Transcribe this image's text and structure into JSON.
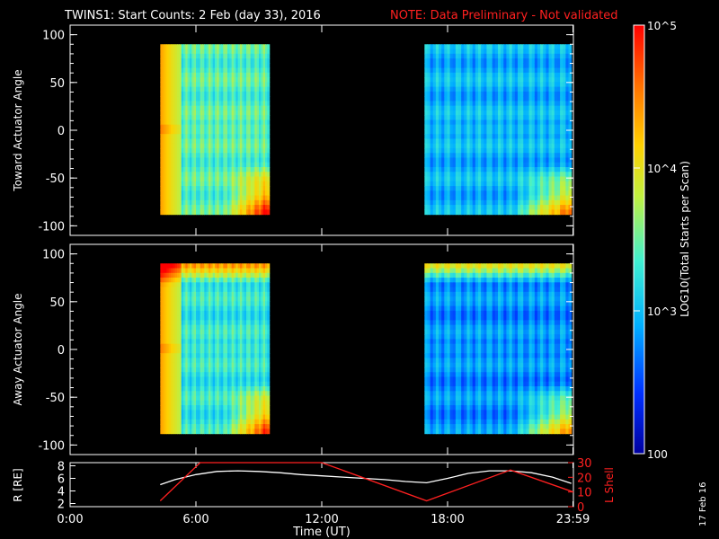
{
  "title": {
    "main": "TWINS1: Start Counts:  2 Feb (day  33), 2016",
    "note": "NOTE: Data Preliminary - Not validated"
  },
  "stamp": "17 Feb 16",
  "colorbar": {
    "label": "LOG10(Total Starts per Scan)",
    "ticks": [
      {
        "value": 100,
        "label": "100"
      },
      {
        "value": 1000,
        "label": "10^3"
      },
      {
        "value": 10000,
        "label": "10^4"
      },
      {
        "value": 100000,
        "label": "10^5"
      }
    ],
    "range": [
      100,
      100000
    ],
    "colors": [
      "#0000a0",
      "#0030ff",
      "#00b0ff",
      "#40f0d0",
      "#c0f040",
      "#ffd000",
      "#ff7000",
      "#ff0000"
    ]
  },
  "chart_data": [
    {
      "type": "heatmap",
      "panel": "top",
      "ylabel": "Toward Actuator Angle",
      "ylim": [
        -110,
        110
      ],
      "yticks": [
        -100,
        -50,
        0,
        50,
        100
      ],
      "xlim_hours": [
        0,
        24
      ],
      "blocks": [
        {
          "start_hour": 4.3,
          "end_hour": 9.5,
          "ymin": -88,
          "ymax": 90,
          "base_level": 0.45
        },
        {
          "start_hour": 16.9,
          "end_hour": 23.9,
          "ymin": -88,
          "ymax": 90,
          "base_level": 0.3
        }
      ]
    },
    {
      "type": "heatmap",
      "panel": "middle",
      "ylabel": "Away Actuator Angle",
      "ylim": [
        -110,
        110
      ],
      "yticks": [
        -100,
        -50,
        0,
        50,
        100
      ],
      "xlim_hours": [
        0,
        24
      ],
      "blocks": [
        {
          "start_hour": 4.3,
          "end_hour": 9.5,
          "ymin": -88,
          "ymax": 90,
          "base_level": 0.4
        },
        {
          "start_hour": 16.9,
          "end_hour": 23.9,
          "ymin": -88,
          "ymax": 90,
          "base_level": 0.25
        }
      ]
    },
    {
      "type": "line",
      "panel": "bottom",
      "xlabel": "Time (UT)",
      "xticks": [
        "0:00",
        "6:00",
        "12:00",
        "18:00",
        "23:59"
      ],
      "xtick_hours": [
        0,
        6,
        12,
        18,
        23.98
      ],
      "ylabel_left": "R [RE]",
      "ylim_left": [
        1.5,
        8.5
      ],
      "yticks_left": [
        2,
        4,
        6,
        8
      ],
      "ylabel_right": "L Shell",
      "ylim_right": [
        0,
        30
      ],
      "yticks_right": [
        0,
        10,
        20,
        30
      ],
      "series": [
        {
          "axis": "left",
          "color": "#ffffff",
          "x": [
            4.3,
            5.0,
            6.0,
            7.0,
            8.0,
            9.0,
            10.0,
            11.0,
            12.0,
            13.0,
            14.0,
            15.0,
            16.0,
            17.0,
            18.0,
            19.0,
            20.0,
            21.0,
            22.0,
            23.0,
            23.9
          ],
          "y": [
            5.0,
            5.8,
            6.6,
            7.1,
            7.2,
            7.1,
            6.9,
            6.6,
            6.4,
            6.2,
            6.0,
            5.8,
            5.5,
            5.3,
            6.0,
            6.8,
            7.2,
            7.2,
            6.9,
            6.2,
            5.2
          ]
        },
        {
          "axis": "right",
          "color": "#ff2020",
          "x": [
            4.3,
            6.2,
            12.0,
            17.0,
            21.0,
            24.0
          ],
          "y": [
            4,
            30,
            30,
            4,
            25,
            10
          ]
        }
      ]
    }
  ]
}
